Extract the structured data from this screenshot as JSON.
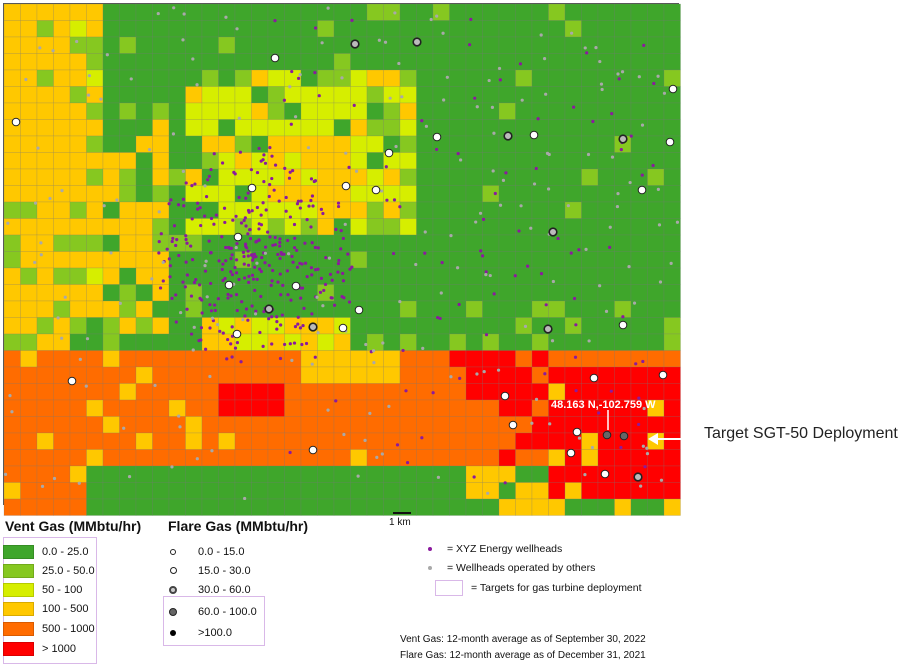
{
  "map": {
    "callout_coords": "48.163 N,-102.759 W",
    "target_label": "Target SGT-50 Deployment",
    "scale_label": "1 km"
  },
  "vent_legend": {
    "title": "Vent Gas (MMbtu/hr)",
    "items": [
      {
        "label": "0.0 - 25.0",
        "color": "#3fa62b"
      },
      {
        "label": "25.0 - 50.0",
        "color": "#86c820"
      },
      {
        "label": "50 - 100",
        "color": "#d6ee00"
      },
      {
        "label": "100 - 500",
        "color": "#ffc800"
      },
      {
        "label": "500 - 1000",
        "color": "#ff6c00"
      },
      {
        "label": "> 1000",
        "color": "#ff0000"
      }
    ]
  },
  "flare_legend": {
    "title": "Flare Gas (MMbtu/hr)",
    "items": [
      {
        "label": "0.0 - 15.0",
        "symbol": "small-white-circle-icon"
      },
      {
        "label": "15.0 - 30.0",
        "symbol": "medium-white-circle-icon"
      },
      {
        "label": "30.0 - 60.0",
        "symbol": "gray-ring-circle-icon"
      },
      {
        "label": "60.0 - 100.0",
        "symbol": "dark-gray-circle-icon"
      },
      {
        "label": ">100.0",
        "symbol": "black-dot-icon"
      }
    ]
  },
  "wellhead_legend": {
    "items": [
      {
        "label": "= XYZ Energy wellheads",
        "color": "#8b1a9e"
      },
      {
        "label": "= Wellheads operated by others",
        "color": "#a9a9a9"
      },
      {
        "label": "= Targets for gas turbine deployment",
        "color": "#d9b8e8"
      }
    ]
  },
  "notes": [
    "Vent Gas: 12-month average as of September 30, 2022",
    "Flare Gas: 12-month average as of December 31, 2021"
  ]
}
